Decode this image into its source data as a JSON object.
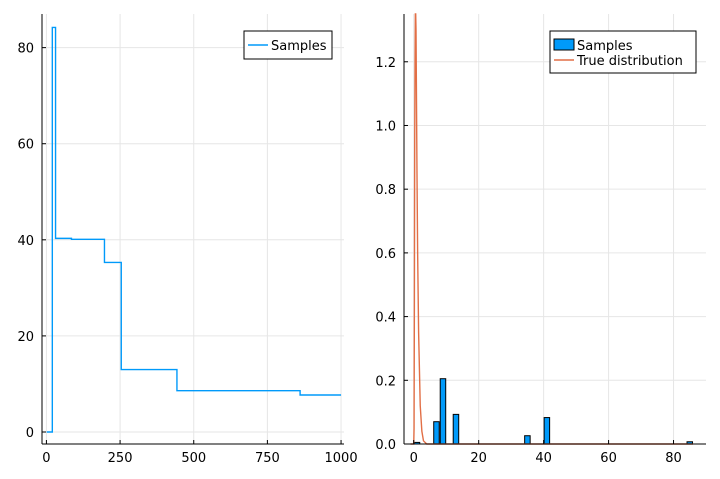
{
  "chart_data": [
    {
      "type": "line",
      "title": "",
      "xlabel": "",
      "ylabel": "",
      "xlim": [
        -15,
        1010
      ],
      "ylim": [
        -2.5,
        87
      ],
      "xticks": [
        0,
        250,
        500,
        750,
        1000
      ],
      "yticks": [
        0,
        20,
        40,
        60,
        80
      ],
      "xtick_labels": [
        "0",
        "250",
        "500",
        "750",
        "1000"
      ],
      "ytick_labels": [
        "0",
        "20",
        "40",
        "60",
        "80"
      ],
      "grid": true,
      "legend": "top-right",
      "series": [
        {
          "name": "Samples",
          "color": "#009AFA",
          "step": true,
          "points": [
            [
              1,
              0.0
            ],
            [
              20,
              84.2
            ],
            [
              31,
              40.3
            ],
            [
              85,
              40.1
            ],
            [
              197,
              35.3
            ],
            [
              254,
              13.0
            ],
            [
              443,
              8.6
            ],
            [
              861,
              7.7
            ],
            [
              1000,
              7.7
            ]
          ]
        }
      ]
    },
    {
      "type": "bar",
      "title": "",
      "xlabel": "",
      "ylabel": "",
      "xlim": [
        -3,
        90
      ],
      "ylim": [
        0,
        1.35
      ],
      "xticks": [
        0,
        20,
        40,
        60,
        80
      ],
      "yticks": [
        0.0,
        0.2,
        0.4,
        0.6,
        0.8,
        1.0,
        1.2
      ],
      "xtick_labels": [
        "0",
        "20",
        "40",
        "60",
        "80"
      ],
      "ytick_labels": [
        "0.0",
        "0.2",
        "0.4",
        "0.6",
        "0.8",
        "1.0",
        "1.2"
      ],
      "grid": true,
      "legend": "top-right",
      "bin_width": 2,
      "series": [
        {
          "name": "Samples",
          "color": "#009AFA",
          "bins": [
            {
              "x0": 0,
              "x1": 2,
              "value": 0.005
            },
            {
              "x0": 6,
              "x1": 8,
              "value": 0.07
            },
            {
              "x0": 8,
              "x1": 10,
              "value": 0.205
            },
            {
              "x0": 12,
              "x1": 14,
              "value": 0.093
            },
            {
              "x0": 34,
              "x1": 36,
              "value": 0.026
            },
            {
              "x0": 40,
              "x1": 42,
              "value": 0.083
            },
            {
              "x0": 84,
              "x1": 86,
              "value": 0.007
            }
          ]
        },
        {
          "name": "True distribution",
          "type": "line",
          "color": "#E26F46",
          "points": [
            [
              -1,
              0.0
            ],
            [
              -0.5,
              0.0
            ],
            [
              0,
              0.0
            ],
            [
              0.1,
              0.05
            ],
            [
              0.2,
              0.45
            ],
            [
              0.3,
              0.95
            ],
            [
              0.4,
              1.2
            ],
            [
              0.5,
              1.35
            ],
            [
              0.6,
              1.38
            ],
            [
              0.7,
              1.3
            ],
            [
              0.8,
              1.15
            ],
            [
              1.0,
              0.85
            ],
            [
              1.2,
              0.6
            ],
            [
              1.5,
              0.35
            ],
            [
              2.0,
              0.12
            ],
            [
              2.5,
              0.04
            ],
            [
              3.0,
              0.01
            ],
            [
              4,
              0.0
            ],
            [
              10,
              0.0
            ],
            [
              20,
              0.0
            ],
            [
              40,
              0.0
            ],
            [
              60,
              0.0
            ],
            [
              80,
              0.0
            ],
            [
              86,
              0.0
            ]
          ]
        }
      ]
    }
  ]
}
